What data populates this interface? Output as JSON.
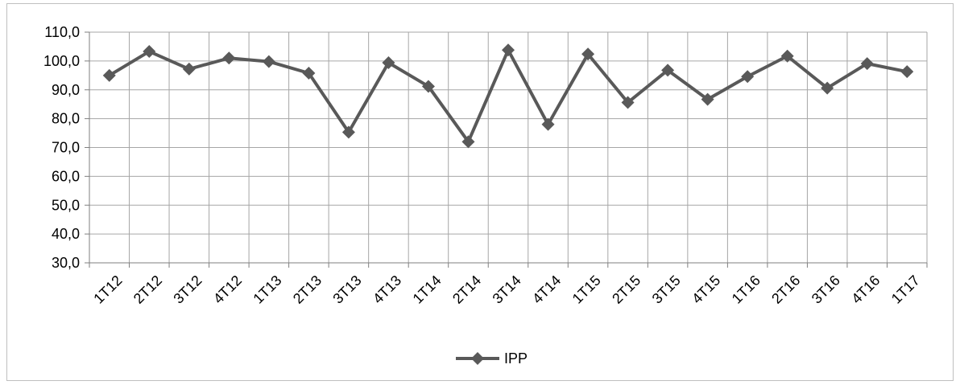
{
  "chart_data": {
    "type": "line",
    "title": "",
    "xlabel": "",
    "ylabel": "",
    "categories": [
      "1T12",
      "2T12",
      "3T12",
      "4T12",
      "1T13",
      "2T13",
      "3T13",
      "4T13",
      "1T14",
      "2T14",
      "3T14",
      "4T14",
      "1T15",
      "2T15",
      "3T15",
      "4T15",
      "1T16",
      "2T16",
      "3T16",
      "4T16",
      "1T17"
    ],
    "series": [
      {
        "name": "IPP",
        "color": "#595959",
        "marker": "diamond",
        "values": [
          95.0,
          103.3,
          97.2,
          101.0,
          99.8,
          95.8,
          75.3,
          99.4,
          91.2,
          72.0,
          103.8,
          78.0,
          102.4,
          85.6,
          96.8,
          86.7,
          94.6,
          101.7,
          90.6,
          99.1,
          96.3
        ]
      }
    ],
    "ylim": [
      30,
      110
    ],
    "yticks": [
      "30,0",
      "40,0",
      "50,0",
      "60,0",
      "70,0",
      "80,0",
      "90,0",
      "100,0",
      "110,0"
    ],
    "grid": true,
    "legend_position": "bottom"
  }
}
